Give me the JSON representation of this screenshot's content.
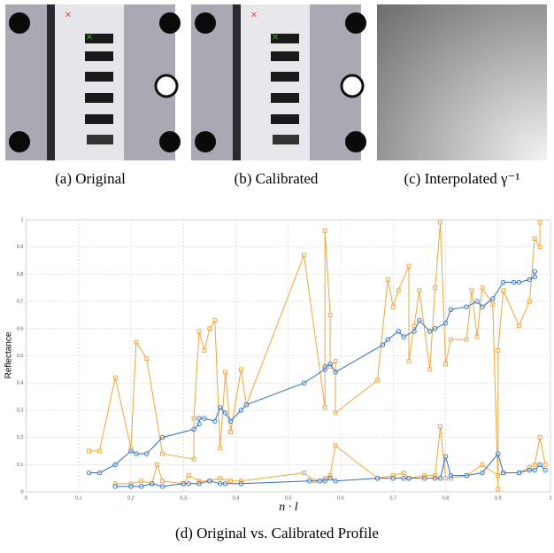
{
  "panels": [
    {
      "caption": "(a) Original"
    },
    {
      "caption": "(b) Calibrated"
    },
    {
      "caption": "(c) Interpolated γ⁻¹"
    }
  ],
  "chart_data": {
    "type": "line",
    "caption": "(d) Original vs. Calibrated Profile",
    "xlabel": "n · l",
    "ylabel": "Reflectance",
    "xlim": [
      0,
      1
    ],
    "ylim": [
      0,
      1
    ],
    "grid": true,
    "xticks": [
      0,
      {
        "value": 0.1,
        "label": "0,1"
      },
      {
        "value": 0.2,
        "label": "0,2"
      },
      {
        "value": 0.3,
        "label": "0,3"
      },
      {
        "value": 0.4,
        "label": "0,4"
      },
      {
        "value": 0.5,
        "label": "0,5"
      },
      {
        "value": 0.6,
        "label": "0,6"
      },
      {
        "value": 0.7,
        "label": "0,7"
      },
      {
        "value": 0.8,
        "label": "0,8"
      },
      {
        "value": 0.9,
        "label": "0,9"
      },
      1
    ],
    "yticks": [
      0,
      {
        "value": 0.1,
        "label": "0,1"
      },
      {
        "value": 0.2,
        "label": "0,2"
      },
      {
        "value": 0.3,
        "label": "0,3"
      },
      {
        "value": 0.4,
        "label": "0,4"
      },
      {
        "value": 0.5,
        "label": "0,5"
      },
      {
        "value": 0.6,
        "label": "0,6"
      },
      {
        "value": 0.7,
        "label": "0,7"
      },
      {
        "value": 0.8,
        "label": "0,8"
      },
      {
        "value": 0.9,
        "label": "0,9"
      },
      1
    ],
    "series": [
      {
        "color": "#f0a43c",
        "marker": "square",
        "x": [
          0.12,
          0.14,
          0.17,
          0.2,
          0.21,
          0.23,
          0.26,
          0.32,
          0.32,
          0.33,
          0.34,
          0.35,
          0.36,
          0.37,
          0.38,
          0.39,
          0.41,
          0.42,
          0.53,
          0.57,
          0.57,
          0.58,
          0.58,
          0.59,
          0.59,
          0.67,
          0.69,
          0.7,
          0.71,
          0.73,
          0.73,
          0.74,
          0.75,
          0.77,
          0.78,
          0.79,
          0.8,
          0.81,
          0.84,
          0.85,
          0.86,
          0.87,
          0.89,
          0.9,
          0.9,
          0.91,
          0.94,
          0.96,
          0.97,
          0.98,
          0.98
        ],
        "values": [
          0.15,
          0.15,
          0.42,
          0.16,
          0.55,
          0.49,
          0.14,
          0.12,
          0.27,
          0.59,
          0.52,
          0.6,
          0.63,
          0.16,
          0.44,
          0.22,
          0.45,
          0.32,
          0.87,
          0.31,
          0.96,
          0.65,
          0.46,
          0.48,
          0.29,
          0.41,
          0.78,
          0.68,
          0.74,
          0.83,
          0.48,
          0.61,
          0.74,
          0.45,
          0.75,
          0.99,
          0.47,
          0.56,
          0.56,
          0.74,
          0.57,
          0.75,
          0.69,
          0.01,
          0.52,
          0.74,
          0.61,
          0.7,
          0.93,
          0.9,
          0.99
        ]
      },
      {
        "color": "#2e6fb5",
        "marker": "circle",
        "x": [
          0.12,
          0.14,
          0.17,
          0.2,
          0.21,
          0.23,
          0.26,
          0.32,
          0.33,
          0.33,
          0.34,
          0.36,
          0.37,
          0.38,
          0.39,
          0.41,
          0.42,
          0.53,
          0.57,
          0.57,
          0.58,
          0.59,
          0.68,
          0.69,
          0.71,
          0.72,
          0.74,
          0.75,
          0.77,
          0.78,
          0.8,
          0.81,
          0.84,
          0.86,
          0.87,
          0.89,
          0.91,
          0.93,
          0.94,
          0.96,
          0.97,
          0.97
        ],
        "values": [
          0.07,
          0.07,
          0.1,
          0.15,
          0.14,
          0.14,
          0.2,
          0.23,
          0.25,
          0.27,
          0.27,
          0.26,
          0.31,
          0.29,
          0.26,
          0.3,
          0.32,
          0.4,
          0.45,
          0.46,
          0.47,
          0.44,
          0.54,
          0.56,
          0.59,
          0.57,
          0.59,
          0.63,
          0.59,
          0.6,
          0.62,
          0.67,
          0.68,
          0.7,
          0.68,
          0.71,
          0.77,
          0.77,
          0.77,
          0.78,
          0.79,
          0.81
        ]
      },
      {
        "color": "#f0a43c",
        "marker": "square",
        "x": [
          0.17,
          0.2,
          0.22,
          0.24,
          0.25,
          0.26,
          0.3,
          0.31,
          0.33,
          0.35,
          0.37,
          0.39,
          0.41,
          0.53,
          0.55,
          0.57,
          0.58,
          0.59,
          0.67,
          0.7,
          0.72,
          0.73,
          0.76,
          0.78,
          0.79,
          0.8,
          0.81,
          0.84,
          0.87,
          0.9,
          0.91,
          0.94,
          0.96,
          0.97,
          0.98,
          0.99
        ],
        "values": [
          0.03,
          0.03,
          0.04,
          0.03,
          0.1,
          0.04,
          0.03,
          0.06,
          0.04,
          0.04,
          0.05,
          0.04,
          0.04,
          0.07,
          0.04,
          0.05,
          0.06,
          0.17,
          0.05,
          0.06,
          0.07,
          0.05,
          0.06,
          0.06,
          0.24,
          0.05,
          0.05,
          0.06,
          0.1,
          0.06,
          0.07,
          0.07,
          0.09,
          0.1,
          0.2,
          0.1
        ]
      },
      {
        "color": "#2e6fb5",
        "marker": "circle",
        "x": [
          0.17,
          0.2,
          0.22,
          0.24,
          0.26,
          0.3,
          0.31,
          0.33,
          0.35,
          0.37,
          0.38,
          0.41,
          0.54,
          0.56,
          0.57,
          0.58,
          0.59,
          0.67,
          0.7,
          0.72,
          0.73,
          0.76,
          0.78,
          0.79,
          0.8,
          0.81,
          0.84,
          0.87,
          0.9,
          0.91,
          0.94,
          0.96,
          0.97,
          0.98,
          0.99
        ],
        "values": [
          0.02,
          0.02,
          0.02,
          0.03,
          0.02,
          0.03,
          0.03,
          0.03,
          0.04,
          0.03,
          0.03,
          0.03,
          0.04,
          0.04,
          0.04,
          0.05,
          0.04,
          0.05,
          0.05,
          0.05,
          0.05,
          0.05,
          0.05,
          0.05,
          0.13,
          0.06,
          0.06,
          0.07,
          0.14,
          0.07,
          0.07,
          0.08,
          0.08,
          0.1,
          0.08
        ]
      }
    ]
  }
}
